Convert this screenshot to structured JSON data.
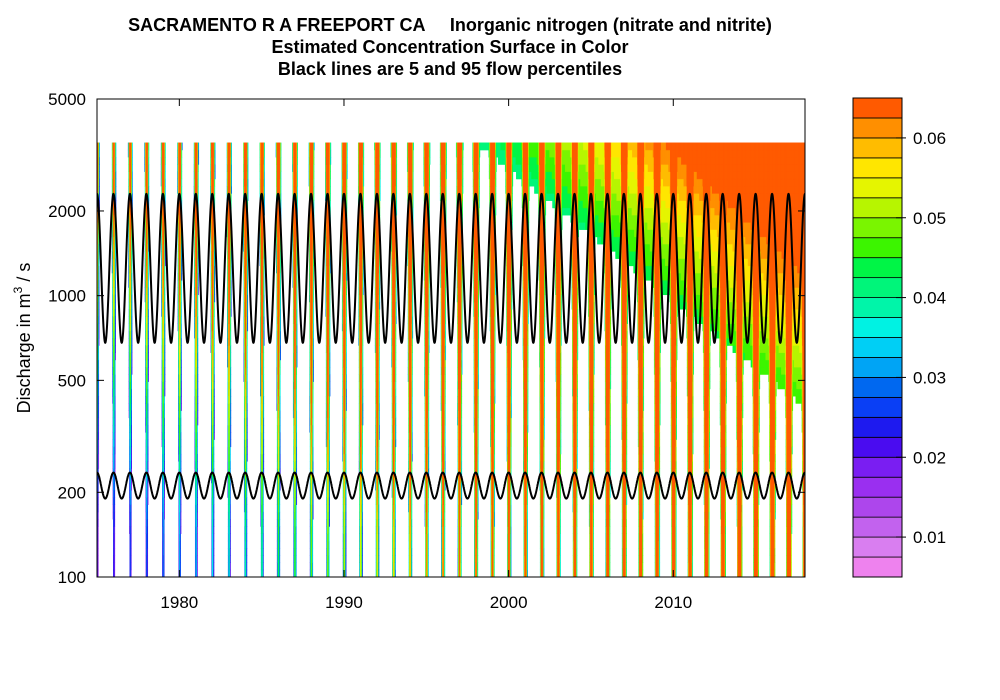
{
  "chart_data": {
    "type": "heatmap",
    "title": "SACRAMENTO R A FREEPORT CA     Inorganic nitrogen (nitrate and nitrite)",
    "subtitle_1": "Estimated Concentration Surface in Color",
    "subtitle_2": "Black lines are 5 and 95 flow percentiles",
    "ylabel_prefix": "Discharge in m",
    "ylabel_sup": "3",
    "ylabel_suffix": " / s",
    "x_scale": "linear",
    "y_scale": "log",
    "xlim": [
      1975,
      2018
    ],
    "ylim": [
      100,
      5000
    ],
    "x_ticks": [
      1980,
      1990,
      2000,
      2010
    ],
    "y_ticks": [
      100,
      200,
      500,
      1000,
      2000,
      5000
    ],
    "colorbar": {
      "range": [
        0.005,
        0.065
      ],
      "levels": [
        0.005,
        0.0075,
        0.01,
        0.0125,
        0.015,
        0.0175,
        0.02,
        0.0225,
        0.025,
        0.0275,
        0.03,
        0.0325,
        0.035,
        0.0375,
        0.04,
        0.0425,
        0.045,
        0.0475,
        0.05,
        0.0525,
        0.055,
        0.0575,
        0.06,
        0.0625,
        0.065
      ],
      "ticks": [
        0.01,
        0.02,
        0.03,
        0.04,
        0.05,
        0.06
      ],
      "tick_labels": [
        "0.01",
        "0.02",
        "0.03",
        "0.04",
        "0.05",
        "0.06"
      ],
      "colors": [
        "#ee82ee",
        "#d97ef0",
        "#c262ee",
        "#ad46ec",
        "#9a2ff0",
        "#7a1ef2",
        "#4a0cf0",
        "#1e1aef",
        "#0a3ff5",
        "#0068f0",
        "#00a4f5",
        "#00cff5",
        "#00f2e3",
        "#00f5a9",
        "#00f57a",
        "#00f546",
        "#3cf500",
        "#7af500",
        "#b7f500",
        "#e5f500",
        "#ffe600",
        "#ffbc00",
        "#ff8f00",
        "#ff5a00",
        "#ff1e00"
      ]
    },
    "percentile_lines": [
      {
        "name": "95 flow percentile",
        "low": 680,
        "high": 2300
      },
      {
        "name": "5 flow percentile",
        "low": 190,
        "high": 235
      }
    ],
    "cycles_per_year": 1
  }
}
